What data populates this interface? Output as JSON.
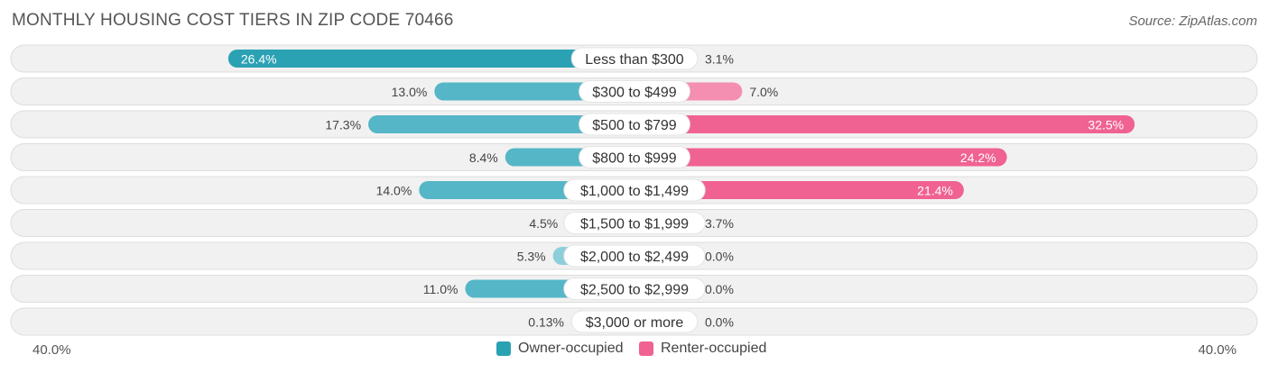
{
  "title": "MONTHLY HOUSING COST TIERS IN ZIP CODE 70466",
  "source": "Source: ZipAtlas.com",
  "axis": {
    "left_label": "40.0%",
    "right_label": "40.0%"
  },
  "legend": {
    "owner": "Owner-occupied",
    "renter": "Renter-occupied"
  },
  "colors": {
    "owner": "#55b6c7",
    "owner_dark": "#2ba1b4",
    "owner_light": "#8ccfda",
    "renter": "#f48fb1",
    "renter_dark": "#f06292",
    "renter_light": "#f8bbd0"
  },
  "chart_data": {
    "type": "bar",
    "orientation": "diverging-horizontal",
    "title": "MONTHLY HOUSING COST TIERS IN ZIP CODE 70466",
    "xlim": [
      -40,
      40
    ],
    "categories": [
      "Less than $300",
      "$300 to $499",
      "$500 to $799",
      "$800 to $999",
      "$1,000 to $1,499",
      "$1,500 to $1,999",
      "$2,000 to $2,499",
      "$2,500 to $2,999",
      "$3,000 or more"
    ],
    "series": [
      {
        "name": "Owner-occupied",
        "values": [
          26.4,
          13.0,
          17.3,
          8.4,
          14.0,
          4.5,
          5.3,
          11.0,
          0.13
        ],
        "labels": [
          "26.4%",
          "13.0%",
          "17.3%",
          "8.4%",
          "14.0%",
          "4.5%",
          "5.3%",
          "11.0%",
          "0.13%"
        ]
      },
      {
        "name": "Renter-occupied",
        "values": [
          3.1,
          7.0,
          32.5,
          24.2,
          21.4,
          3.7,
          0.0,
          0.0,
          0.0
        ],
        "labels": [
          "3.1%",
          "7.0%",
          "32.5%",
          "24.2%",
          "21.4%",
          "3.7%",
          "0.0%",
          "0.0%",
          "0.0%"
        ]
      }
    ],
    "legend_position": "bottom-center"
  }
}
